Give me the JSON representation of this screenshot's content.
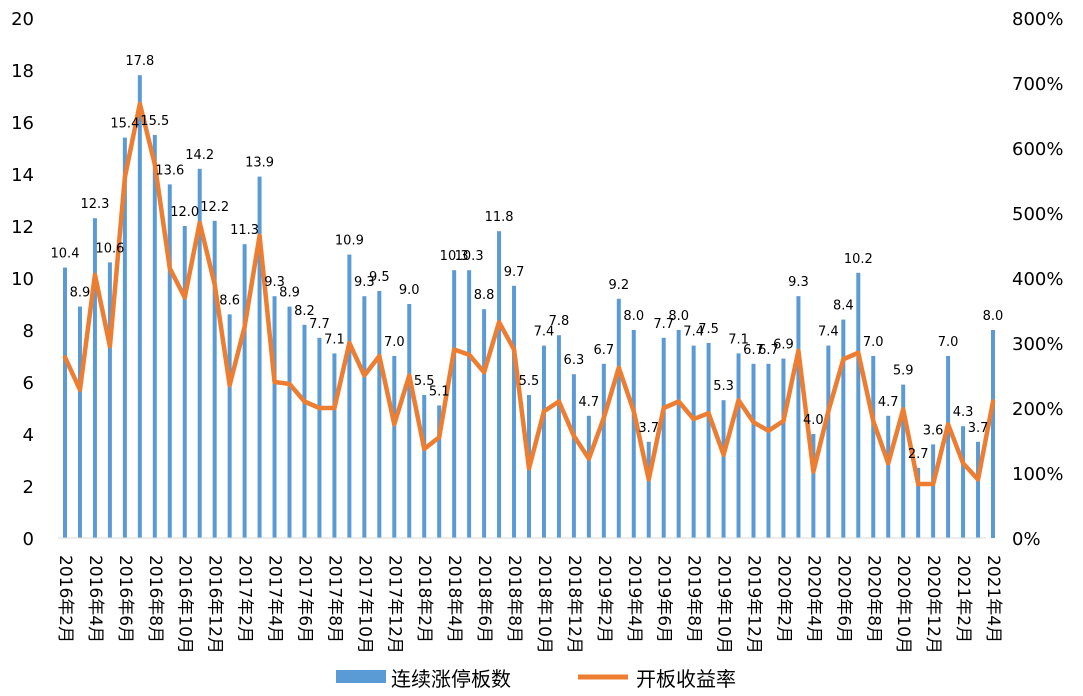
{
  "chart_data": {
    "type": "bar",
    "x": [
      "2016年2月",
      "2016年3月",
      "2016年4月",
      "2016年5月",
      "2016年6月",
      "2016年7月",
      "2016年8月",
      "2016年9月",
      "2016年10月",
      "2016年11月",
      "2016年12月",
      "2017年1月",
      "2017年2月",
      "2017年3月",
      "2017年4月",
      "2017年5月",
      "2017年6月",
      "2017年7月",
      "2017年8月",
      "2017年9月",
      "2017年10月",
      "2017年11月",
      "2017年12月",
      "2018年1月",
      "2018年2月",
      "2018年3月",
      "2018年4月",
      "2018年5月",
      "2018年6月",
      "2018年7月",
      "2018年8月",
      "2018年9月",
      "2018年10月",
      "2018年11月",
      "2018年12月",
      "2019年1月",
      "2019年2月",
      "2019年3月",
      "2019年4月",
      "2019年5月",
      "2019年6月",
      "2019年7月",
      "2019年8月",
      "2019年9月",
      "2019年10月",
      "2019年11月",
      "2019年12月",
      "2020年1月",
      "2020年2月",
      "2020年3月",
      "2020年4月",
      "2020年5月",
      "2020年6月",
      "2020年7月",
      "2020年8月",
      "2020年9月",
      "2020年10月",
      "2020年11月",
      "2020年12月",
      "2021年1月",
      "2021年2月",
      "2021年3月",
      "2021年4月"
    ],
    "x_tick_labels": [
      "2016年2月",
      "2016年4月",
      "2016年6月",
      "2016年8月",
      "2016年10月",
      "2016年12月",
      "2017年2月",
      "2017年4月",
      "2017年6月",
      "2017年8月",
      "2017年10月",
      "2017年12月",
      "2018年2月",
      "2018年4月",
      "2018年6月",
      "2018年8月",
      "2018年10月",
      "2018年12月",
      "2019年2月",
      "2019年4月",
      "2019年6月",
      "2019年8月",
      "2019年10月",
      "2019年12月",
      "2020年2月",
      "2020年4月",
      "2020年6月",
      "2020年8月",
      "2020年10月",
      "2020年12月",
      "2021年2月",
      "2021年4月"
    ],
    "series": [
      {
        "name": "连续涨停板数",
        "type": "bar",
        "axis": "left",
        "color": "#5B9BD5",
        "values": [
          10.4,
          8.9,
          12.3,
          10.6,
          15.4,
          17.8,
          15.5,
          13.6,
          12.0,
          14.2,
          12.2,
          8.6,
          11.3,
          13.9,
          9.3,
          8.9,
          8.2,
          7.7,
          7.1,
          10.9,
          9.3,
          9.5,
          7.0,
          9.0,
          5.5,
          5.1,
          10.3,
          10.3,
          8.8,
          11.8,
          9.7,
          5.5,
          7.4,
          7.8,
          6.3,
          4.7,
          6.7,
          9.2,
          8.0,
          3.7,
          7.7,
          8.0,
          7.4,
          7.5,
          5.3,
          7.1,
          6.7,
          6.7,
          6.9,
          9.3,
          4.0,
          7.4,
          8.4,
          10.2,
          7.0,
          4.7,
          5.9,
          2.7,
          3.6,
          7.0,
          4.3,
          3.7,
          8.0
        ],
        "labels": [
          "10.4",
          "8.9",
          "12.3",
          "10.6",
          "15.4",
          "17.8",
          "15.5",
          "13.6",
          "12.0",
          "14.2",
          "12.2",
          "8.6",
          "11.3",
          "13.9",
          "9.3",
          "8.9",
          "8.2",
          "7.7",
          "7.1",
          "10.9",
          "9.3",
          "9.5",
          "7.0",
          "9.0",
          "5.5",
          "5.1",
          "10.3",
          "10.3",
          "8.8",
          "11.8",
          "9.7",
          "5.5",
          "7.4",
          "7.8",
          "6.3",
          "4.7",
          "6.7",
          "9.2",
          "8.0",
          "3.7",
          "7.7",
          "8.0",
          "7.4",
          "7.5",
          "5.3",
          "7.1",
          "6.7",
          "6.7",
          "6.9",
          "9.3",
          "4.0",
          "7.4",
          "8.4",
          "10.2",
          "7.0",
          "4.7",
          "5.9",
          "2.7",
          "3.6",
          "7.0",
          "4.3",
          "3.7",
          "8.0"
        ]
      },
      {
        "name": "开板收益率",
        "type": "line",
        "axis": "right",
        "color": "#ED7D31",
        "unit": "%",
        "values": [
          278,
          228,
          405,
          295,
          555,
          668,
          575,
          415,
          370,
          485,
          390,
          235,
          325,
          465,
          240,
          237,
          210,
          200,
          200,
          300,
          250,
          280,
          175,
          250,
          137,
          155,
          290,
          282,
          255,
          332,
          290,
          107,
          195,
          210,
          157,
          122,
          185,
          262,
          195,
          90,
          200,
          210,
          183,
          192,
          128,
          212,
          178,
          165,
          180,
          288,
          102,
          195,
          275,
          285,
          180,
          115,
          198,
          83,
          83,
          175,
          115,
          90,
          210
        ]
      }
    ],
    "y_left": {
      "min": 0,
      "max": 20,
      "ticks": [
        "0",
        "2",
        "4",
        "6",
        "8",
        "10",
        "12",
        "14",
        "16",
        "18",
        "20"
      ]
    },
    "y_right": {
      "min": 0,
      "max": 800,
      "ticks": [
        "0%",
        "100%",
        "200%",
        "300%",
        "400%",
        "500%",
        "600%",
        "700%",
        "800%"
      ]
    },
    "grid": false,
    "legend_position": "bottom",
    "legend": [
      "连续涨停板数",
      "开板收益率"
    ],
    "title": "",
    "xlabel": "",
    "ylabel": ""
  }
}
